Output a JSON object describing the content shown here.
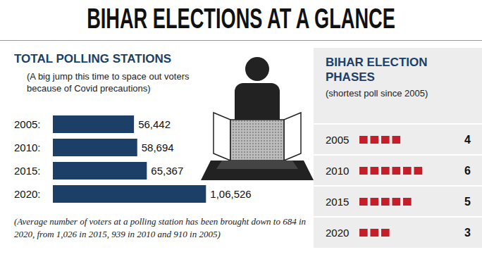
{
  "title": "BIHAR ELECTIONS AT A GLANCE",
  "chart_data": [
    {
      "type": "bar",
      "title": "TOTAL POLLING STATIONS",
      "subtitle": "(A big jump this time to space out voters because of Covid precautions)",
      "note": "(Average number of voters at a polling station has been brought down to 684 in 2020, from 1,026 in 2015, 939 in 2010 and 910 in 2005)",
      "orientation": "horizontal",
      "categories": [
        "2005:",
        "2010:",
        "2015:",
        "2020:"
      ],
      "values": [
        56442,
        58694,
        65367,
        106526
      ],
      "value_labels": [
        "56,442",
        "58,694",
        "65,367",
        "1,06,526"
      ],
      "data_labels": true,
      "tick_labels": "y",
      "color": "#1b3f66",
      "xlim": [
        0,
        150000
      ]
    },
    {
      "type": "bar",
      "title": "BIHAR ELECTION PHASES",
      "subtitle": "(shortest poll since 2005)",
      "orientation": "horizontal",
      "categories": [
        "2005",
        "2010",
        "2015",
        "2020"
      ],
      "values": [
        4,
        6,
        5,
        3
      ],
      "data_labels": true,
      "tick_labels": "y",
      "marker": "square",
      "color": "#c41e2a",
      "xlim": [
        0,
        8
      ]
    }
  ]
}
